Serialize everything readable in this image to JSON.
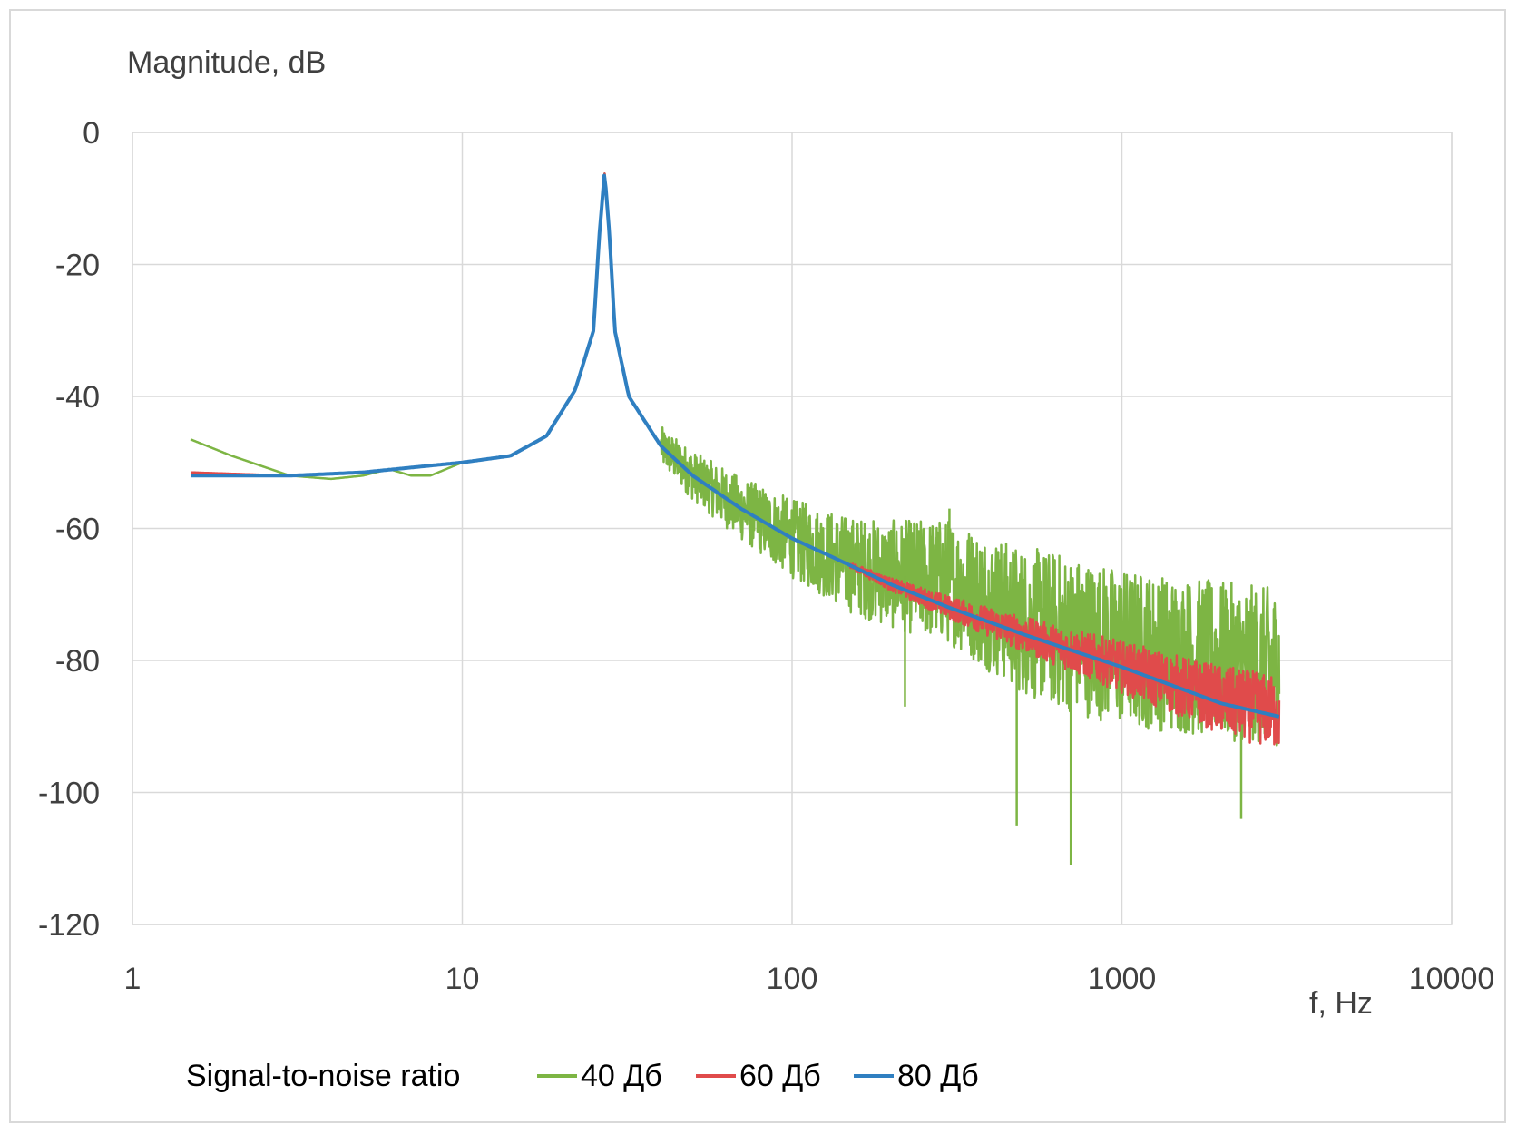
{
  "chart_data": {
    "type": "line",
    "ylabel": "Magnitude, dB",
    "xlabel": "f, Hz",
    "x_scale": "log",
    "xlim": [
      1,
      10000
    ],
    "ylim": [
      -120,
      0
    ],
    "y_ticks": [
      0,
      -20,
      -40,
      -60,
      -80,
      -100,
      -120
    ],
    "x_ticks": [
      1,
      10,
      100,
      1000,
      10000
    ],
    "y_tick_labels": [
      "0",
      "-20",
      "-40",
      "-60",
      "-80",
      "-100",
      "-120"
    ],
    "x_tick_labels": [
      "1",
      "10",
      "100",
      "1000",
      "10000"
    ],
    "grid": true,
    "legend_title": "Signal-to-noise ratio",
    "legend_position": "bottom",
    "series": [
      {
        "name": "40 Дб",
        "color": "#7db544",
        "points": [
          [
            1.5,
            -46.5
          ],
          [
            2,
            -49
          ],
          [
            3,
            -52
          ],
          [
            4,
            -52.5
          ],
          [
            5,
            -52
          ],
          [
            6,
            -51
          ],
          [
            7,
            -52
          ],
          [
            8,
            -52
          ],
          [
            10,
            -50
          ],
          [
            14,
            -49
          ],
          [
            18,
            -46
          ],
          [
            22,
            -39
          ],
          [
            25,
            -30
          ],
          [
            26,
            -16
          ],
          [
            27,
            -6
          ],
          [
            28,
            -16
          ],
          [
            29,
            -30
          ],
          [
            32,
            -40
          ],
          [
            40,
            -47.5
          ],
          [
            50,
            -52
          ],
          [
            70,
            -57
          ],
          [
            100,
            -61.5
          ],
          [
            150,
            -65.5
          ],
          [
            200,
            -67
          ],
          [
            300,
            -68
          ],
          [
            500,
            -74
          ],
          [
            1000,
            -78
          ],
          [
            2000,
            -80
          ],
          [
            3000,
            -81
          ]
        ],
        "noise_floor_db": -80,
        "noise_start_hz": 40,
        "spikes": [
          [
            220,
            -87
          ],
          [
            480,
            -105
          ],
          [
            700,
            -111
          ],
          [
            2300,
            -104
          ],
          [
            300,
            -57
          ]
        ]
      },
      {
        "name": "60 Дб",
        "color": "#e04b4b",
        "points": [
          [
            1.5,
            -51.5
          ],
          [
            3,
            -52
          ],
          [
            5,
            -51.5
          ],
          [
            10,
            -50
          ],
          [
            14,
            -49
          ],
          [
            18,
            -46
          ],
          [
            22,
            -39
          ],
          [
            25,
            -30
          ],
          [
            26,
            -16
          ],
          [
            27,
            -6
          ],
          [
            28,
            -16
          ],
          [
            29,
            -30
          ],
          [
            32,
            -40
          ],
          [
            40,
            -47.5
          ],
          [
            50,
            -52
          ],
          [
            70,
            -57
          ],
          [
            100,
            -61.5
          ],
          [
            200,
            -68.5
          ],
          [
            300,
            -72
          ],
          [
            500,
            -76
          ],
          [
            1000,
            -81
          ],
          [
            2000,
            -86
          ],
          [
            3000,
            -88
          ]
        ],
        "noise_floor_db": -100,
        "noise_start_hz": 150
      },
      {
        "name": "80 Дб",
        "color": "#2f7fc1",
        "points": [
          [
            1.5,
            -52
          ],
          [
            3,
            -52
          ],
          [
            5,
            -51.5
          ],
          [
            10,
            -50
          ],
          [
            14,
            -49
          ],
          [
            18,
            -46
          ],
          [
            22,
            -39
          ],
          [
            25,
            -30
          ],
          [
            26,
            -16
          ],
          [
            27,
            -6
          ],
          [
            28,
            -16
          ],
          [
            29,
            -30
          ],
          [
            32,
            -40
          ],
          [
            40,
            -47.5
          ],
          [
            50,
            -52
          ],
          [
            70,
            -57
          ],
          [
            100,
            -61.5
          ],
          [
            200,
            -68.5
          ],
          [
            300,
            -72
          ],
          [
            500,
            -76
          ],
          [
            1000,
            -81
          ],
          [
            2000,
            -86.5
          ],
          [
            3000,
            -88.5
          ]
        ]
      }
    ]
  }
}
